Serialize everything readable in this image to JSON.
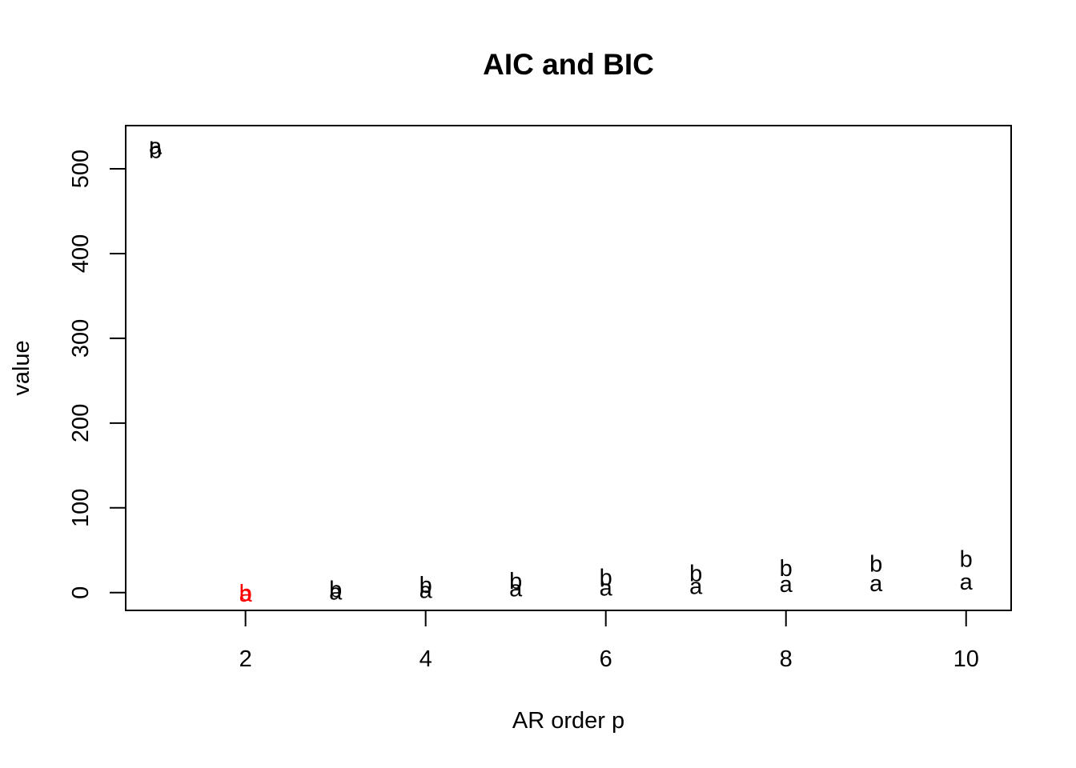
{
  "chart_data": {
    "type": "scatter",
    "title": "AIC and BIC",
    "xlabel": "AR order p",
    "ylabel": "value",
    "xlim": [
      0.67,
      10.5
    ],
    "ylim": [
      -21.0,
      551.0
    ],
    "xticks": [
      2,
      4,
      6,
      8,
      10
    ],
    "yticks": [
      0,
      100,
      200,
      300,
      400,
      500
    ],
    "grid": false,
    "legend": "none",
    "default_color": "#000000",
    "highlight_color": "#ff0000",
    "highlight_x": 2,
    "series": [
      {
        "symbol": "a",
        "x": [
          1,
          2,
          3,
          4,
          5,
          6,
          7,
          8,
          9,
          10
        ],
        "y": [
          527,
          -1,
          1,
          3,
          5,
          6,
          8,
          10,
          11,
          13
        ]
      },
      {
        "symbol": "b",
        "x": [
          1,
          2,
          3,
          4,
          5,
          6,
          7,
          8,
          9,
          10
        ],
        "y": [
          522,
          0,
          4,
          9,
          14,
          18,
          23,
          29,
          34,
          40
        ]
      }
    ]
  }
}
